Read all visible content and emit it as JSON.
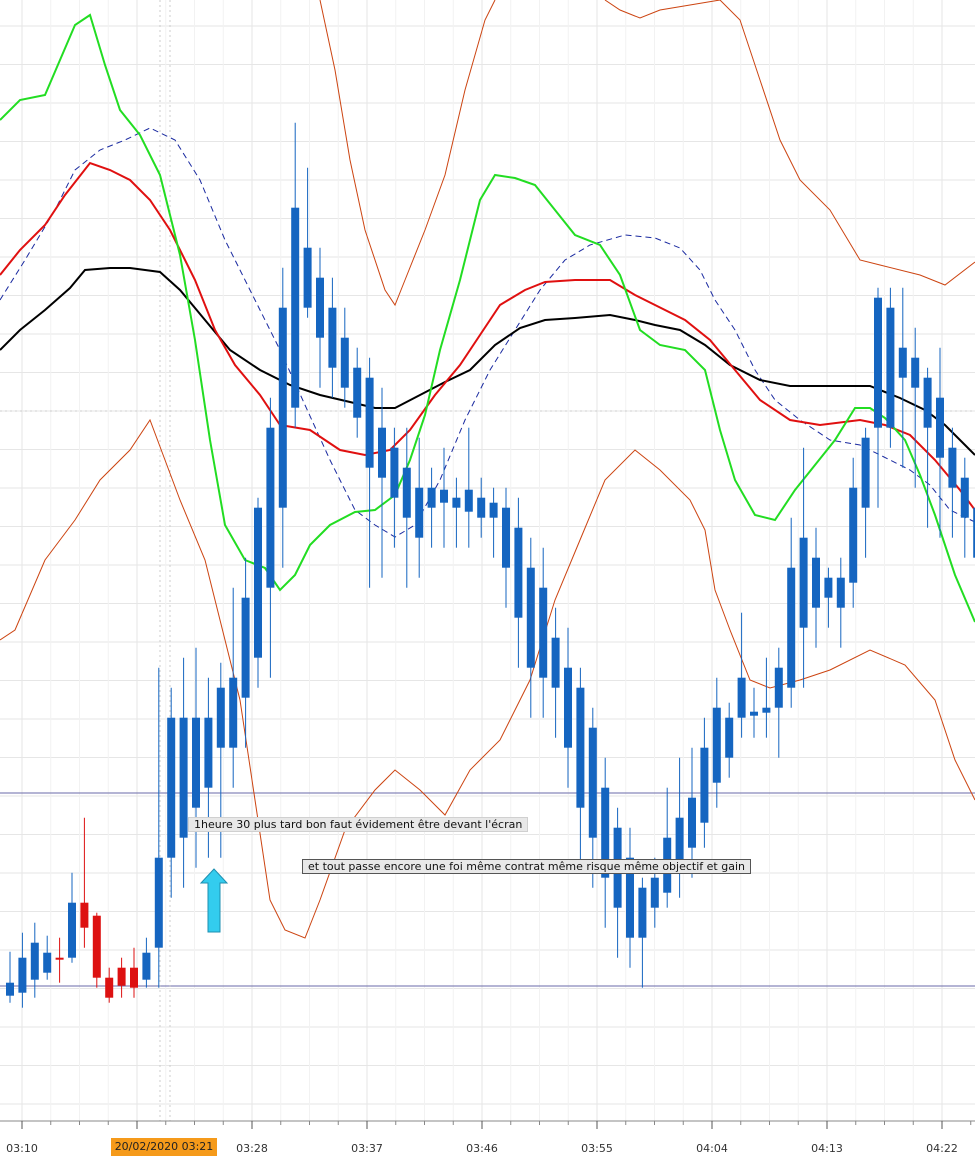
{
  "chart_data": {
    "type": "candlestick",
    "x_tick_labels": [
      "03:10",
      "03:19",
      "03:28",
      "03:37",
      "03:46",
      "03:55",
      "04:04",
      "04:13",
      "04:22"
    ],
    "cursor_date_label": "20/02/2020 03:21",
    "annotations": [
      "1heure 30 plus tard bon faut évidement être devant l'écran",
      "et tout passe encore une foi même contrat même risque même objectif et gain"
    ],
    "colors": {
      "up_candle": "#1565c0",
      "down_candle": "#dd1111",
      "ema_green": "#22dd22",
      "ema_red": "#e01010",
      "ema_black": "#000000",
      "ma_dashed": "#1a2aa0",
      "bollinger": "#cc4411",
      "annotation_arrow": "#33ccee",
      "cursor_label_bg": "#f59a1a"
    },
    "candles": [
      [
        -8,
        5,
        -15,
        36
      ],
      [
        -5,
        30,
        -20,
        55
      ],
      [
        8,
        45,
        -10,
        65
      ],
      [
        15,
        35,
        8,
        52
      ],
      [
        30,
        30,
        5,
        50
      ],
      [
        30,
        85,
        25,
        115
      ],
      [
        85,
        60,
        40,
        170
      ],
      [
        72,
        10,
        0,
        75
      ],
      [
        10,
        -10,
        -15,
        20
      ],
      [
        20,
        2,
        -10,
        30
      ],
      [
        20,
        0,
        -10,
        40
      ],
      [
        8,
        35,
        0,
        50
      ],
      [
        40,
        130,
        0,
        320
      ],
      [
        130,
        270,
        90,
        300
      ],
      [
        150,
        270,
        100,
        330
      ],
      [
        180,
        270,
        120,
        340
      ],
      [
        200,
        270,
        130,
        310
      ],
      [
        240,
        300,
        130,
        325
      ],
      [
        240,
        310,
        200,
        400
      ],
      [
        290,
        390,
        240,
        430
      ],
      [
        330,
        480,
        300,
        490
      ],
      [
        400,
        560,
        310,
        590
      ],
      [
        480,
        680,
        420,
        720
      ],
      [
        580,
        780,
        560,
        865
      ],
      [
        680,
        740,
        670,
        820
      ],
      [
        650,
        710,
        600,
        740
      ],
      [
        620,
        680,
        590,
        710
      ],
      [
        600,
        650,
        580,
        680
      ],
      [
        570,
        620,
        550,
        640
      ],
      [
        520,
        610,
        400,
        630
      ],
      [
        510,
        560,
        410,
        600
      ],
      [
        490,
        540,
        440,
        560
      ],
      [
        470,
        520,
        400,
        560
      ],
      [
        450,
        500,
        410,
        550
      ],
      [
        480,
        500,
        440,
        520
      ],
      [
        485,
        498,
        440,
        540
      ],
      [
        480,
        490,
        440,
        510
      ],
      [
        476,
        498,
        440,
        560
      ],
      [
        470,
        490,
        450,
        510
      ],
      [
        470,
        485,
        430,
        500
      ],
      [
        420,
        480,
        380,
        500
      ],
      [
        370,
        460,
        320,
        490
      ],
      [
        320,
        420,
        270,
        450
      ],
      [
        310,
        400,
        270,
        440
      ],
      [
        300,
        350,
        250,
        380
      ],
      [
        240,
        320,
        200,
        360
      ],
      [
        180,
        300,
        120,
        320
      ],
      [
        150,
        260,
        100,
        280
      ],
      [
        110,
        200,
        60,
        230
      ],
      [
        80,
        160,
        30,
        180
      ],
      [
        50,
        130,
        20,
        160
      ],
      [
        50,
        100,
        0,
        110
      ],
      [
        80,
        110,
        60,
        130
      ],
      [
        95,
        150,
        80,
        200
      ],
      [
        115,
        170,
        90,
        230
      ],
      [
        140,
        190,
        110,
        240
      ],
      [
        165,
        240,
        140,
        270
      ],
      [
        205,
        280,
        180,
        310
      ],
      [
        230,
        270,
        210,
        285
      ],
      [
        270,
        310,
        250,
        375
      ],
      [
        272,
        276,
        250,
        300
      ],
      [
        275,
        280,
        250,
        330
      ],
      [
        280,
        320,
        230,
        340
      ],
      [
        300,
        420,
        280,
        470
      ],
      [
        360,
        450,
        300,
        540
      ],
      [
        380,
        430,
        340,
        460
      ],
      [
        390,
        410,
        360,
        420
      ],
      [
        380,
        410,
        340,
        430
      ],
      [
        405,
        500,
        380,
        530
      ],
      [
        480,
        550,
        430,
        560
      ],
      [
        560,
        690,
        480,
        700
      ],
      [
        560,
        680,
        540,
        700
      ],
      [
        610,
        640,
        520,
        700
      ],
      [
        600,
        630,
        500,
        660
      ],
      [
        560,
        610,
        460,
        620
      ],
      [
        530,
        590,
        450,
        640
      ],
      [
        500,
        540,
        450,
        560
      ],
      [
        470,
        510,
        430,
        530
      ],
      [
        430,
        480,
        400,
        500
      ],
      [
        410,
        440,
        380,
        450
      ],
      [
        400,
        430,
        380,
        430
      ],
      [
        390,
        420,
        360,
        430
      ],
      [
        360,
        400,
        330,
        420
      ],
      [
        365,
        380,
        330,
        400
      ],
      [
        380,
        410,
        350,
        430
      ],
      [
        400,
        440,
        380,
        450
      ],
      [
        410,
        450,
        390,
        480
      ],
      [
        440,
        500,
        400,
        510
      ],
      [
        450,
        520,
        420,
        550
      ],
      [
        490,
        580,
        470,
        600
      ],
      [
        580,
        670,
        540,
        760
      ],
      [
        630,
        680,
        600,
        720
      ]
    ]
  }
}
